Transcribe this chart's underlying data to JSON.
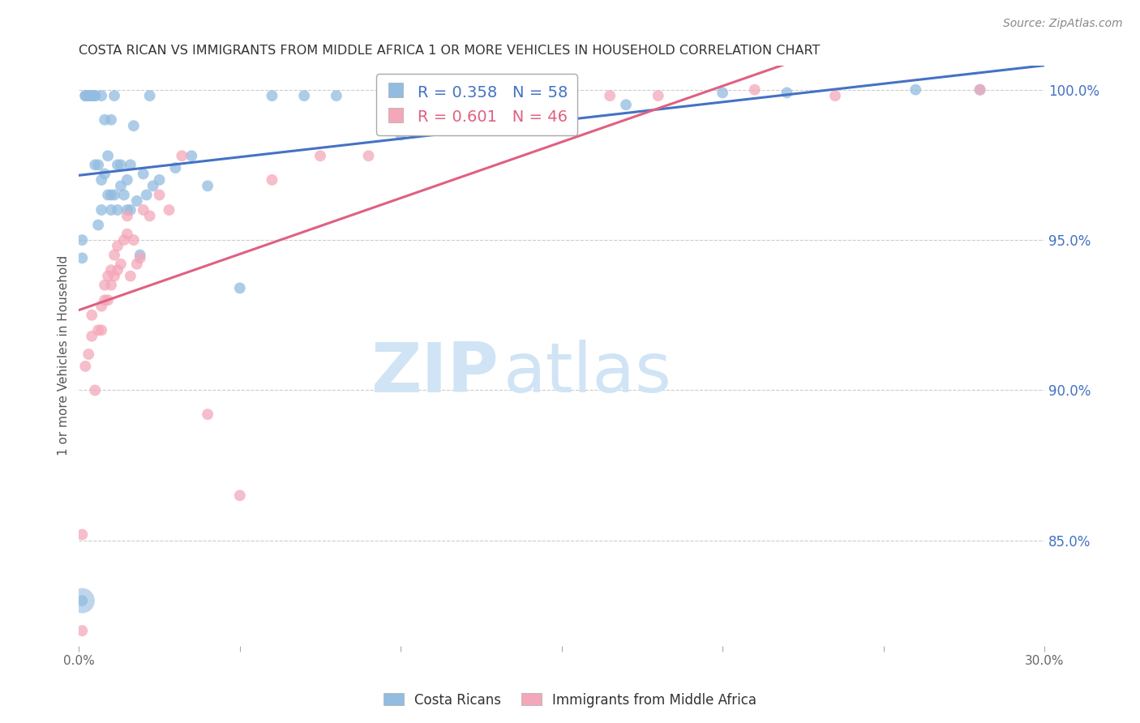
{
  "title": "COSTA RICAN VS IMMIGRANTS FROM MIDDLE AFRICA 1 OR MORE VEHICLES IN HOUSEHOLD CORRELATION CHART",
  "source": "Source: ZipAtlas.com",
  "ylabel": "1 or more Vehicles in Household",
  "xlim": [
    0.0,
    0.3
  ],
  "ylim": [
    0.815,
    1.008
  ],
  "xticks": [
    0.0,
    0.05,
    0.1,
    0.15,
    0.2,
    0.25,
    0.3
  ],
  "xticklabels": [
    "0.0%",
    "",
    "",
    "",
    "",
    "",
    "30.0%"
  ],
  "yticks_right": [
    0.85,
    0.9,
    0.95,
    1.0
  ],
  "ytick_right_labels": [
    "85.0%",
    "90.0%",
    "95.0%",
    "100.0%"
  ],
  "blue_R": 0.358,
  "blue_N": 58,
  "pink_R": 0.601,
  "pink_N": 46,
  "blue_color": "#92bce0",
  "pink_color": "#f4a7b9",
  "blue_line_color": "#4472c4",
  "pink_line_color": "#e06080",
  "watermark_ZIP": "ZIP",
  "watermark_atlas": "atlas",
  "watermark_color": "#d0e4f5",
  "blue_scatter_x": [
    0.001,
    0.001,
    0.002,
    0.002,
    0.003,
    0.003,
    0.003,
    0.004,
    0.004,
    0.005,
    0.005,
    0.005,
    0.006,
    0.006,
    0.007,
    0.007,
    0.007,
    0.008,
    0.008,
    0.009,
    0.009,
    0.01,
    0.01,
    0.01,
    0.011,
    0.011,
    0.012,
    0.012,
    0.013,
    0.013,
    0.014,
    0.015,
    0.015,
    0.016,
    0.016,
    0.017,
    0.018,
    0.019,
    0.02,
    0.021,
    0.022,
    0.023,
    0.025,
    0.03,
    0.035,
    0.04,
    0.05,
    0.06,
    0.07,
    0.08,
    0.1,
    0.13,
    0.17,
    0.2,
    0.22,
    0.26,
    0.28,
    0.001
  ],
  "blue_scatter_y": [
    0.95,
    0.944,
    0.998,
    0.998,
    0.998,
    0.998,
    0.998,
    0.998,
    0.998,
    0.998,
    0.975,
    0.998,
    0.975,
    0.955,
    0.998,
    0.97,
    0.96,
    0.99,
    0.972,
    0.965,
    0.978,
    0.96,
    0.965,
    0.99,
    0.998,
    0.965,
    0.975,
    0.96,
    0.975,
    0.968,
    0.965,
    0.97,
    0.96,
    0.975,
    0.96,
    0.988,
    0.963,
    0.945,
    0.972,
    0.965,
    0.998,
    0.968,
    0.97,
    0.974,
    0.978,
    0.968,
    0.934,
    0.998,
    0.998,
    0.998,
    0.985,
    0.988,
    0.995,
    0.999,
    0.999,
    1.0,
    1.0,
    0.83
  ],
  "pink_scatter_x": [
    0.001,
    0.002,
    0.003,
    0.004,
    0.004,
    0.005,
    0.006,
    0.007,
    0.007,
    0.008,
    0.008,
    0.009,
    0.009,
    0.01,
    0.01,
    0.011,
    0.011,
    0.012,
    0.012,
    0.013,
    0.014,
    0.015,
    0.015,
    0.016,
    0.017,
    0.018,
    0.019,
    0.02,
    0.022,
    0.025,
    0.028,
    0.032,
    0.04,
    0.05,
    0.06,
    0.075,
    0.09,
    0.11,
    0.13,
    0.15,
    0.165,
    0.18,
    0.21,
    0.235,
    0.28,
    0.001
  ],
  "pink_scatter_y": [
    0.82,
    0.908,
    0.912,
    0.925,
    0.918,
    0.9,
    0.92,
    0.92,
    0.928,
    0.93,
    0.935,
    0.93,
    0.938,
    0.935,
    0.94,
    0.938,
    0.945,
    0.94,
    0.948,
    0.942,
    0.95,
    0.952,
    0.958,
    0.938,
    0.95,
    0.942,
    0.944,
    0.96,
    0.958,
    0.965,
    0.96,
    0.978,
    0.892,
    0.865,
    0.97,
    0.978,
    0.978,
    0.99,
    0.994,
    0.996,
    0.998,
    0.998,
    1.0,
    0.998,
    1.0,
    0.852
  ]
}
